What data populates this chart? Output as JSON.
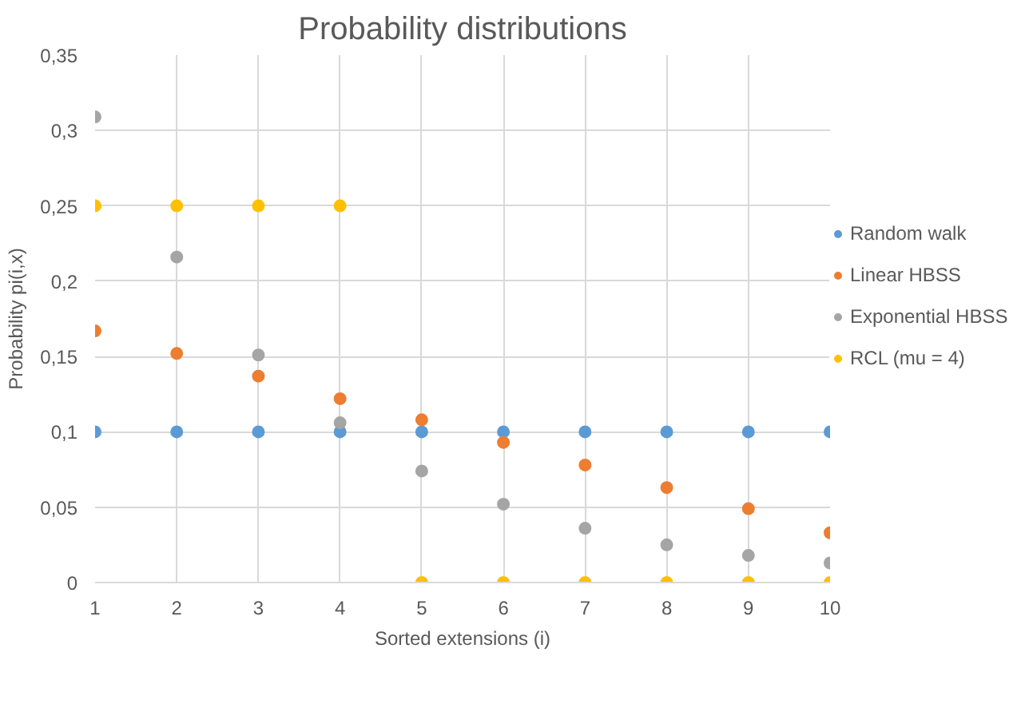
{
  "chart_data": {
    "type": "scatter",
    "title": "Probability distributions",
    "xlabel": "Sorted extensions (i)",
    "ylabel": "Probability pi(i,x)",
    "x": [
      1,
      2,
      3,
      4,
      5,
      6,
      7,
      8,
      9,
      10
    ],
    "series": [
      {
        "name": "Random walk",
        "color": "#5b9bd5",
        "values": [
          0.1,
          0.1,
          0.1,
          0.1,
          0.1,
          0.1,
          0.1,
          0.1,
          0.1,
          0.1
        ]
      },
      {
        "name": "Linear HBSS",
        "color": "#ed7d31",
        "values": [
          0.167,
          0.152,
          0.137,
          0.122,
          0.108,
          0.093,
          0.078,
          0.063,
          0.049,
          0.033
        ]
      },
      {
        "name": "Exponential HBSS",
        "color": "#a5a5a5",
        "values": [
          0.309,
          0.216,
          0.151,
          0.106,
          0.074,
          0.052,
          0.036,
          0.025,
          0.018,
          0.013
        ]
      },
      {
        "name": "RCL (mu = 4)",
        "color": "#ffc000",
        "values": [
          0.25,
          0.25,
          0.25,
          0.25,
          0,
          0,
          0,
          0,
          0,
          0
        ]
      }
    ],
    "xlim": [
      1,
      10
    ],
    "xticks": [
      1,
      2,
      3,
      4,
      5,
      6,
      7,
      8,
      9,
      10
    ],
    "ylim": [
      0,
      0.35
    ],
    "yticks": [
      0,
      {
        "value": 0.05,
        "label": "0,05"
      },
      {
        "value": 0.1,
        "label": "0,1"
      },
      {
        "value": 0.15,
        "label": "0,15"
      },
      {
        "value": 0.2,
        "label": "0,2"
      },
      {
        "value": 0.25,
        "label": "0,25"
      },
      {
        "value": 0.3,
        "label": "0,3"
      },
      {
        "value": 0.35,
        "label": "0,35"
      }
    ],
    "grid": true,
    "legend": "right",
    "marker": "circle"
  }
}
